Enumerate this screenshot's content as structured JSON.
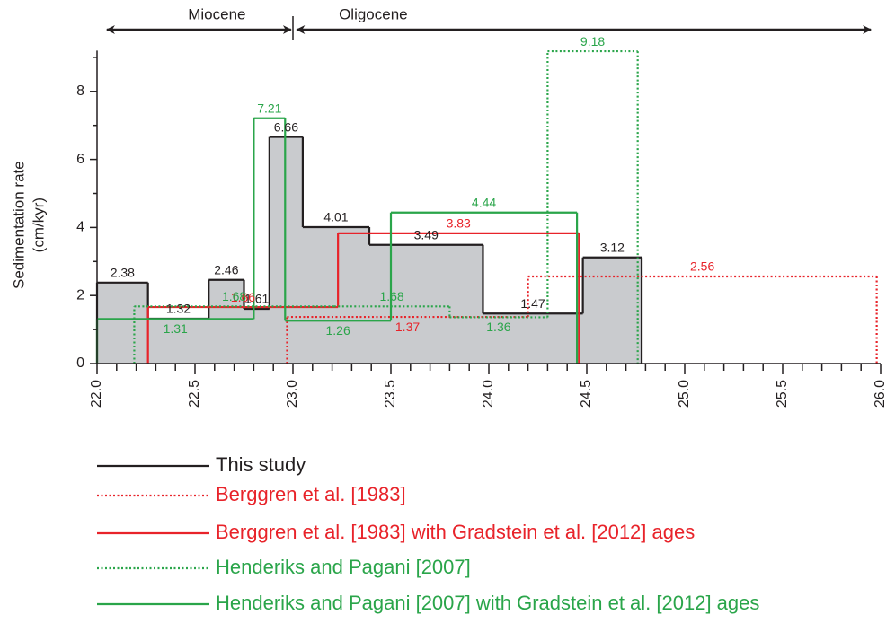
{
  "chart_data": {
    "type": "step",
    "ylabel": [
      "Sedimentation rate",
      "(cm/kyr)"
    ],
    "xlim": [
      22.0,
      26.0
    ],
    "ylim": [
      0,
      9.2
    ],
    "xticks": [
      {
        "value": 22.0,
        "label": "22.0"
      },
      {
        "value": 22.5,
        "label": "22.5"
      },
      {
        "value": 23.0,
        "label": "23.0"
      },
      {
        "value": 23.5,
        "label": "23.5"
      },
      {
        "value": 24.0,
        "label": "24.0"
      },
      {
        "value": 24.5,
        "label": "24.5"
      },
      {
        "value": 25.0,
        "label": "25.0"
      },
      {
        "value": 25.5,
        "label": "25.5"
      },
      {
        "value": 26.0,
        "label": "26.0"
      }
    ],
    "xminorticks": [
      22.1,
      22.2,
      22.3,
      22.4,
      22.6,
      22.7,
      22.8,
      22.9,
      23.1,
      23.2,
      23.3,
      23.4,
      23.6,
      23.7,
      23.8,
      23.9,
      24.1,
      24.2,
      24.3,
      24.4,
      24.6,
      24.7,
      24.8,
      24.9,
      25.1,
      25.2,
      25.3,
      25.4,
      25.6,
      25.7,
      25.8,
      25.9
    ],
    "yticks": [
      0,
      2,
      4,
      6,
      8
    ],
    "yminorticks": [
      1,
      3,
      5,
      7,
      9
    ],
    "periods": [
      {
        "label": "Miocene",
        "range": [
          22.05,
          22.99
        ]
      },
      {
        "label": "Oligocene",
        "range": [
          23.02,
          25.95
        ]
      }
    ],
    "series": [
      {
        "name": "This study",
        "color": "#231f20",
        "fill": "#c9cbce",
        "dashed": false,
        "bins": [
          22.0,
          22.26,
          22.57,
          22.75,
          22.88,
          23.05,
          23.39,
          23.97,
          24.48,
          24.78
        ],
        "values": [
          2.38,
          1.32,
          2.46,
          1.61,
          6.66,
          4.01,
          3.49,
          1.47,
          3.12
        ]
      },
      {
        "name": "Berggren et al. [1983]",
        "color": "#e8232a",
        "dashed": true,
        "bins": [
          22.97,
          24.2,
          25.98
        ],
        "values": [
          1.37,
          2.56
        ]
      },
      {
        "name": "Berggren et al. [1983] with Gradstein et al. [2012] ages",
        "color": "#e8232a",
        "dashed": false,
        "bins": [
          22.26,
          23.23,
          24.46
        ],
        "values": [
          1.66,
          3.83
        ]
      },
      {
        "name": "Henderiks and Pagani [2007]",
        "color": "#2aa54a",
        "dashed": true,
        "bins": [
          22.19,
          23.21,
          23.8,
          24.3,
          24.76
        ],
        "values": [
          1.68,
          1.68,
          1.36,
          9.18
        ]
      },
      {
        "name": "Henderiks and Pagani [2007] with Gradstein et al. [2012] ages",
        "color": "#2aa54a",
        "dashed": false,
        "bins": [
          22.0,
          22.8,
          22.96,
          23.5,
          24.45
        ],
        "values": [
          1.31,
          7.21,
          1.26,
          4.44
        ]
      }
    ]
  }
}
